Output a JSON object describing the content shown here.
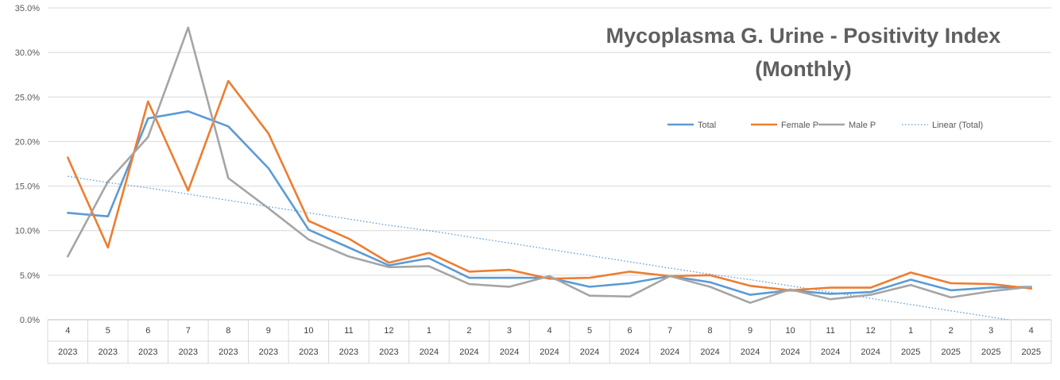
{
  "chart_data": {
    "type": "line",
    "title": [
      "Mycoplasma G. Urine - Positivity Index",
      "(Monthly)"
    ],
    "xlabel": "",
    "ylabel": "",
    "ylim": [
      0,
      35
    ],
    "y_ticks": [
      "0.0%",
      "5.0%",
      "10.0%",
      "15.0%",
      "20.0%",
      "25.0%",
      "30.0%",
      "35.0%"
    ],
    "y_tick_values": [
      0,
      5,
      10,
      15,
      20,
      25,
      30,
      35
    ],
    "x_months": [
      "4",
      "5",
      "6",
      "7",
      "8",
      "9",
      "10",
      "11",
      "12",
      "1",
      "2",
      "3",
      "4",
      "5",
      "6",
      "7",
      "8",
      "9",
      "10",
      "11",
      "12",
      "1",
      "2",
      "3",
      "4"
    ],
    "x_years": [
      "2023",
      "2023",
      "2023",
      "2023",
      "2023",
      "2023",
      "2023",
      "2023",
      "2023",
      "2024",
      "2024",
      "2024",
      "2024",
      "2024",
      "2024",
      "2024",
      "2024",
      "2024",
      "2024",
      "2024",
      "2024",
      "2025",
      "2025",
      "2025",
      "2025"
    ],
    "grid": true,
    "legend_position": "upper-right",
    "series": [
      {
        "name": "Total",
        "color": "#5b9bd5",
        "style": "solid",
        "values": [
          12.0,
          11.6,
          22.6,
          23.4,
          21.7,
          17.0,
          10.1,
          8.1,
          6.1,
          6.9,
          4.7,
          4.7,
          4.7,
          3.7,
          4.1,
          4.9,
          4.2,
          2.8,
          3.3,
          2.9,
          3.1,
          4.5,
          3.3,
          3.6,
          3.7
        ]
      },
      {
        "name": "Female P",
        "color": "#ed7d31",
        "style": "solid",
        "values": [
          18.2,
          8.1,
          24.5,
          14.5,
          26.8,
          20.9,
          11.1,
          9.1,
          6.4,
          7.5,
          5.4,
          5.6,
          4.6,
          4.7,
          5.4,
          4.9,
          5.0,
          3.8,
          3.3,
          3.6,
          3.6,
          5.3,
          4.1,
          4.0,
          3.5
        ]
      },
      {
        "name": "Male P",
        "color": "#a5a5a5",
        "style": "solid",
        "values": [
          7.1,
          15.5,
          20.5,
          32.8,
          15.9,
          12.5,
          9.0,
          7.1,
          5.9,
          6.0,
          4.0,
          3.7,
          4.9,
          2.7,
          2.6,
          4.9,
          3.7,
          1.9,
          3.4,
          2.3,
          2.8,
          3.9,
          2.5,
          3.2,
          3.7
        ]
      },
      {
        "name": "Linear (Total)",
        "color": "#5b9bd5",
        "style": "dotted",
        "values": [
          16.1,
          15.4,
          14.8,
          14.1,
          13.4,
          12.7,
          12.0,
          11.3,
          10.6,
          10.0,
          9.3,
          8.6,
          7.9,
          7.2,
          6.5,
          5.8,
          5.1,
          4.5,
          3.8,
          3.1,
          2.4,
          1.7,
          1.0,
          0.3,
          -0.4
        ]
      }
    ]
  }
}
